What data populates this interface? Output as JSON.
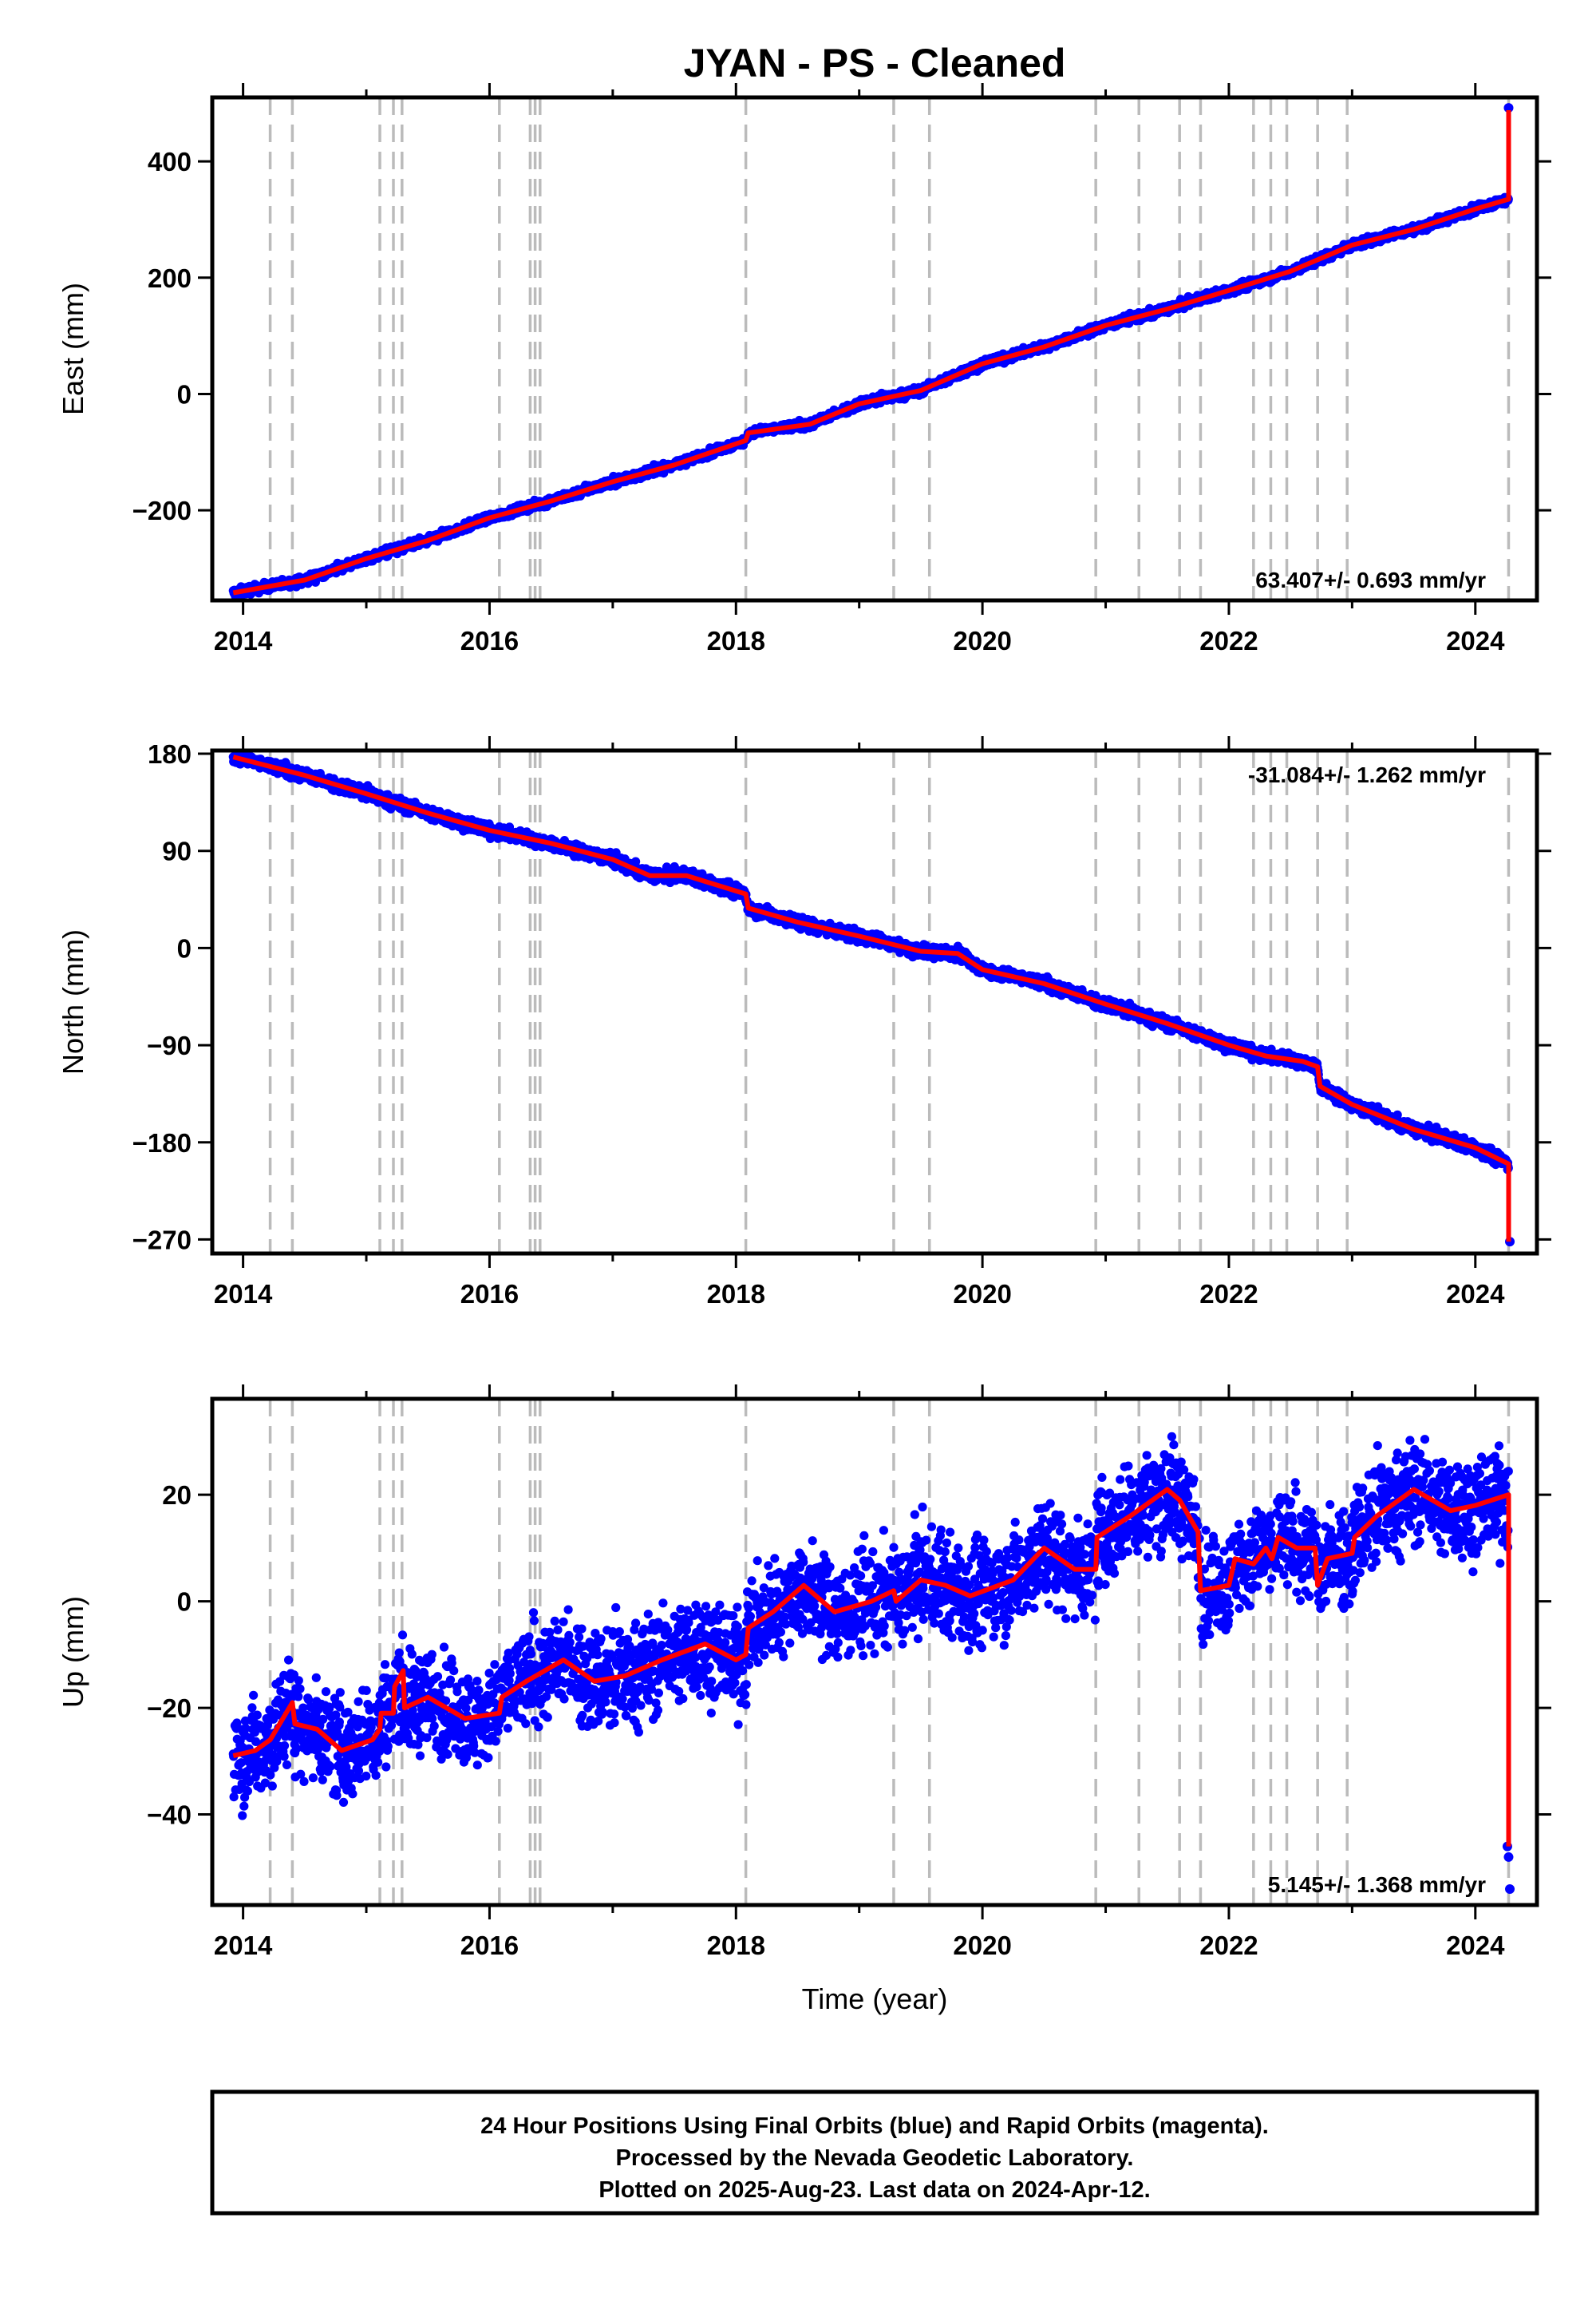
{
  "title": "JYAN  - PS - Cleaned",
  "footer": {
    "lines": [
      "24 Hour Positions Using Final Orbits (blue) and Rapid Orbits (magenta).",
      "Processed by the Nevada Geodetic Laboratory.",
      "Plotted on 2025-Aug-23. Last data on 2024-Apr-12."
    ]
  },
  "colors": {
    "points": "#0000ff",
    "model": "#ff0000",
    "discontinuity": "#bbbbbb",
    "frame": "#000000"
  },
  "chart_data": [
    {
      "type": "scatter",
      "name": "east",
      "ylabel": "East (mm)",
      "xlabel": "",
      "xlim": [
        2013.75,
        2024.5
      ],
      "ylim": [
        -355,
        510
      ],
      "xticks": [
        2014,
        2016,
        2018,
        2020,
        2022,
        2024
      ],
      "yticks": [
        -200,
        0,
        200,
        400
      ],
      "ytick_labels": [
        "−200",
        "0",
        "200",
        "400"
      ],
      "rate_label": "63.407+/- 0.693 mm/yr",
      "model_knots": [
        [
          2013.92,
          -342
        ],
        [
          2014.5,
          -320
        ],
        [
          2015.0,
          -283
        ],
        [
          2015.5,
          -252
        ],
        [
          2016.0,
          -213
        ],
        [
          2016.5,
          -184
        ],
        [
          2017.0,
          -151
        ],
        [
          2017.5,
          -122
        ],
        [
          2018.08,
          -80
        ],
        [
          2018.1,
          -67
        ],
        [
          2018.6,
          -52
        ],
        [
          2019.0,
          -17
        ],
        [
          2019.5,
          6
        ],
        [
          2020.0,
          52
        ],
        [
          2020.5,
          81
        ],
        [
          2021.0,
          118
        ],
        [
          2021.5,
          146
        ],
        [
          2022.0,
          178
        ],
        [
          2022.5,
          211
        ],
        [
          2023.0,
          256
        ],
        [
          2023.5,
          283
        ],
        [
          2024.0,
          318
        ],
        [
          2024.27,
          335
        ]
      ],
      "step": {
        "x": 2024.27,
        "to": 488
      },
      "outliers": [
        [
          2024.27,
          492
        ]
      ],
      "noise": 3.5,
      "grid": false
    },
    {
      "type": "scatter",
      "name": "north",
      "ylabel": "North (mm)",
      "xlabel": "",
      "xlim": [
        2013.75,
        2024.5
      ],
      "ylim": [
        -283,
        183
      ],
      "xticks": [
        2014,
        2016,
        2018,
        2020,
        2022,
        2024
      ],
      "yticks": [
        -270,
        -180,
        -90,
        0,
        90,
        180
      ],
      "ytick_labels": [
        "−270",
        "−180",
        "−90",
        "0",
        "90",
        "180"
      ],
      "rate_label": "-31.084+/- 1.262 mm/yr",
      "model_knots": [
        [
          2013.92,
          177
        ],
        [
          2014.5,
          160
        ],
        [
          2015.0,
          143
        ],
        [
          2015.5,
          125
        ],
        [
          2016.0,
          109
        ],
        [
          2016.5,
          97
        ],
        [
          2017.0,
          82
        ],
        [
          2017.3,
          67
        ],
        [
          2017.6,
          67
        ],
        [
          2018.08,
          50
        ],
        [
          2018.1,
          37
        ],
        [
          2018.5,
          24
        ],
        [
          2019.0,
          11
        ],
        [
          2019.5,
          -3
        ],
        [
          2019.8,
          -5
        ],
        [
          2020.0,
          -20
        ],
        [
          2020.5,
          -33
        ],
        [
          2021.0,
          -52
        ],
        [
          2021.5,
          -70
        ],
        [
          2022.0,
          -90
        ],
        [
          2022.3,
          -100
        ],
        [
          2022.6,
          -105
        ],
        [
          2022.72,
          -110
        ],
        [
          2022.74,
          -128
        ],
        [
          2023.0,
          -145
        ],
        [
          2023.5,
          -168
        ],
        [
          2024.0,
          -185
        ],
        [
          2024.27,
          -200
        ]
      ],
      "step": {
        "x": 2024.27,
        "to": -272
      },
      "outliers": [
        [
          2024.28,
          -272
        ]
      ],
      "noise": 2.8,
      "grid": false
    },
    {
      "type": "scatter",
      "name": "up",
      "ylabel": "Up (mm)",
      "xlabel": "Time (year)",
      "xlim": [
        2013.75,
        2024.5
      ],
      "ylim": [
        -57,
        38
      ],
      "xticks": [
        2014,
        2016,
        2018,
        2020,
        2022,
        2024
      ],
      "yticks": [
        -40,
        -20,
        0,
        20
      ],
      "ytick_labels": [
        "−40",
        "−20",
        "0",
        "20"
      ],
      "rate_label": "5.145+/- 1.368 mm/yr",
      "model_knots": [
        [
          2013.92,
          -29
        ],
        [
          2014.1,
          -28
        ],
        [
          2014.22,
          -26
        ],
        [
          2014.4,
          -19
        ],
        [
          2014.42,
          -23
        ],
        [
          2014.6,
          -24
        ],
        [
          2014.8,
          -28
        ],
        [
          2015.05,
          -26
        ],
        [
          2015.11,
          -24
        ],
        [
          2015.12,
          -21
        ],
        [
          2015.22,
          -21
        ],
        [
          2015.23,
          -16
        ],
        [
          2015.3,
          -13
        ],
        [
          2015.31,
          -20
        ],
        [
          2015.5,
          -18
        ],
        [
          2015.8,
          -22
        ],
        [
          2016.08,
          -21
        ],
        [
          2016.1,
          -18
        ],
        [
          2016.3,
          -15
        ],
        [
          2016.6,
          -11
        ],
        [
          2016.85,
          -15
        ],
        [
          2017.1,
          -14
        ],
        [
          2017.4,
          -11
        ],
        [
          2017.75,
          -8
        ],
        [
          2018.0,
          -11
        ],
        [
          2018.08,
          -10
        ],
        [
          2018.1,
          -5
        ],
        [
          2018.3,
          -2
        ],
        [
          2018.55,
          3
        ],
        [
          2018.8,
          -2
        ],
        [
          2019.1,
          0
        ],
        [
          2019.28,
          2
        ],
        [
          2019.3,
          0
        ],
        [
          2019.5,
          4
        ],
        [
          2019.7,
          3
        ],
        [
          2019.9,
          1
        ],
        [
          2020.25,
          4
        ],
        [
          2020.5,
          10
        ],
        [
          2020.75,
          6
        ],
        [
          2020.92,
          6
        ],
        [
          2020.93,
          12
        ],
        [
          2021.2,
          16
        ],
        [
          2021.5,
          21
        ],
        [
          2021.6,
          19
        ],
        [
          2021.75,
          13
        ],
        [
          2021.77,
          2
        ],
        [
          2022.0,
          3
        ],
        [
          2022.05,
          8
        ],
        [
          2022.2,
          7
        ],
        [
          2022.3,
          10
        ],
        [
          2022.35,
          8
        ],
        [
          2022.4,
          12
        ],
        [
          2022.55,
          10
        ],
        [
          2022.7,
          10
        ],
        [
          2022.72,
          3
        ],
        [
          2022.8,
          8
        ],
        [
          2023.0,
          9
        ],
        [
          2023.02,
          12
        ],
        [
          2023.2,
          16
        ],
        [
          2023.5,
          21
        ],
        [
          2023.8,
          17
        ],
        [
          2024.0,
          18
        ],
        [
          2024.27,
          20
        ]
      ],
      "step": {
        "x": 2024.27,
        "to": -46
      },
      "outliers": [
        [
          2024.26,
          -46
        ],
        [
          2024.27,
          -48
        ],
        [
          2024.28,
          -54
        ]
      ],
      "noise": 4.6,
      "grid": false
    }
  ],
  "discontinuities": [
    2014.22,
    2014.4,
    2015.11,
    2015.22,
    2015.29,
    2016.08,
    2016.33,
    2016.37,
    2016.41,
    2018.08,
    2019.28,
    2019.57,
    2020.92,
    2021.27,
    2021.6,
    2021.77,
    2022.2,
    2022.34,
    2022.47,
    2022.72,
    2022.96,
    2024.27
  ]
}
